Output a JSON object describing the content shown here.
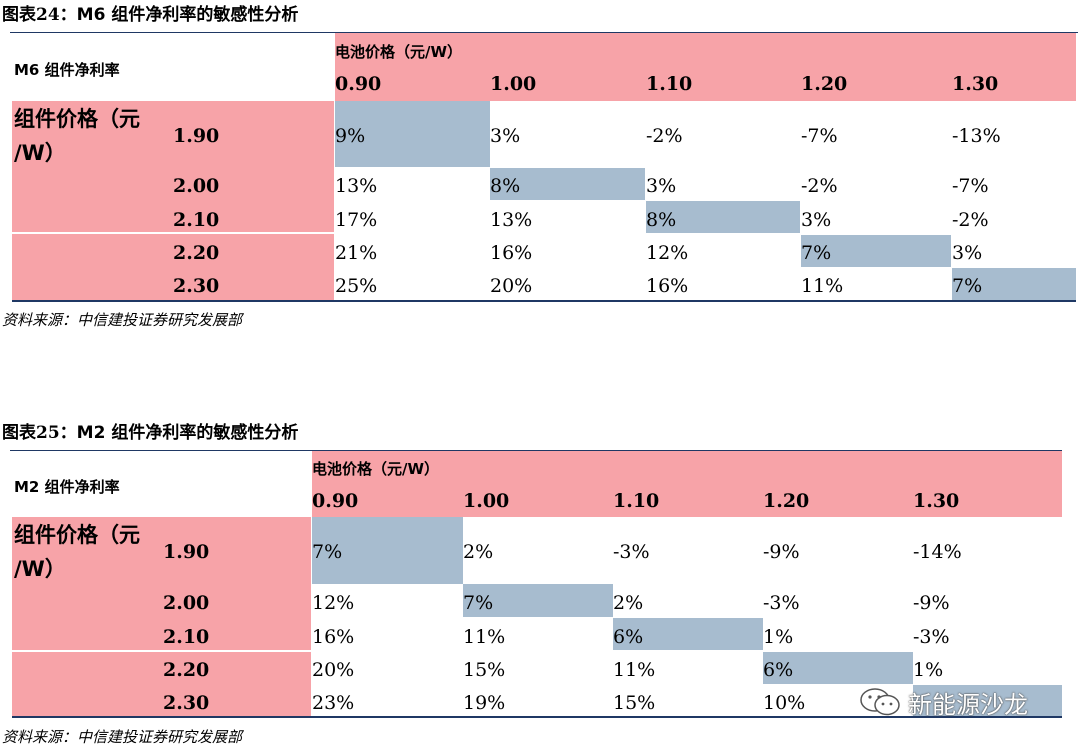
{
  "tables": [
    {
      "caption_prefix": "图表24：",
      "caption_title": "M6 组件净利率的敏感性分析",
      "corner_label": "M6 组件净利率",
      "col_header_label": "电池价格（元/W）",
      "col_values": [
        "0.90",
        "1.00",
        "1.10",
        "1.20",
        "1.30"
      ],
      "row_header_label_line1": "组件价格（元",
      "row_header_label_line2": "/W）",
      "row_values": [
        "1.90",
        "2.00",
        "2.10",
        "2.20",
        "2.30"
      ],
      "cells": [
        [
          "9%",
          "3%",
          "-2%",
          "-7%",
          "-13%"
        ],
        [
          "13%",
          "8%",
          "3%",
          "-2%",
          "-7%"
        ],
        [
          "17%",
          "13%",
          "8%",
          "3%",
          "-2%"
        ],
        [
          "21%",
          "16%",
          "12%",
          "7%",
          "3%"
        ],
        [
          "25%",
          "20%",
          "16%",
          "11%",
          "7%"
        ]
      ],
      "source": "资料来源：中信建投证券研究发展部"
    },
    {
      "caption_prefix": "图表25：",
      "caption_title": "M2 组件净利率的敏感性分析",
      "corner_label": "M2 组件净利率",
      "col_header_label": "电池价格（元/W）",
      "col_values": [
        "0.90",
        "1.00",
        "1.10",
        "1.20",
        "1.30"
      ],
      "row_header_label_line1": "组件价格（元",
      "row_header_label_line2": "/W）",
      "row_values": [
        "1.90",
        "2.00",
        "2.10",
        "2.20",
        "2.30"
      ],
      "cells": [
        [
          "7%",
          "2%",
          "-3%",
          "-9%",
          "-14%"
        ],
        [
          "12%",
          "7%",
          "2%",
          "-3%",
          "-9%"
        ],
        [
          "16%",
          "11%",
          "6%",
          "1%",
          "-3%"
        ],
        [
          "20%",
          "15%",
          "11%",
          "6%",
          "1%"
        ],
        [
          "23%",
          "19%",
          "15%",
          "10%",
          ""
        ]
      ],
      "source": "资料来源：中信建投证券研究发展部"
    }
  ],
  "watermark": {
    "text": "新能源沙龙",
    "icon": "wechat-icon"
  },
  "colors": {
    "header_pink": "#f7a3a8",
    "diagonal_blue": "#a7bccf",
    "rule": "#1f3864"
  }
}
